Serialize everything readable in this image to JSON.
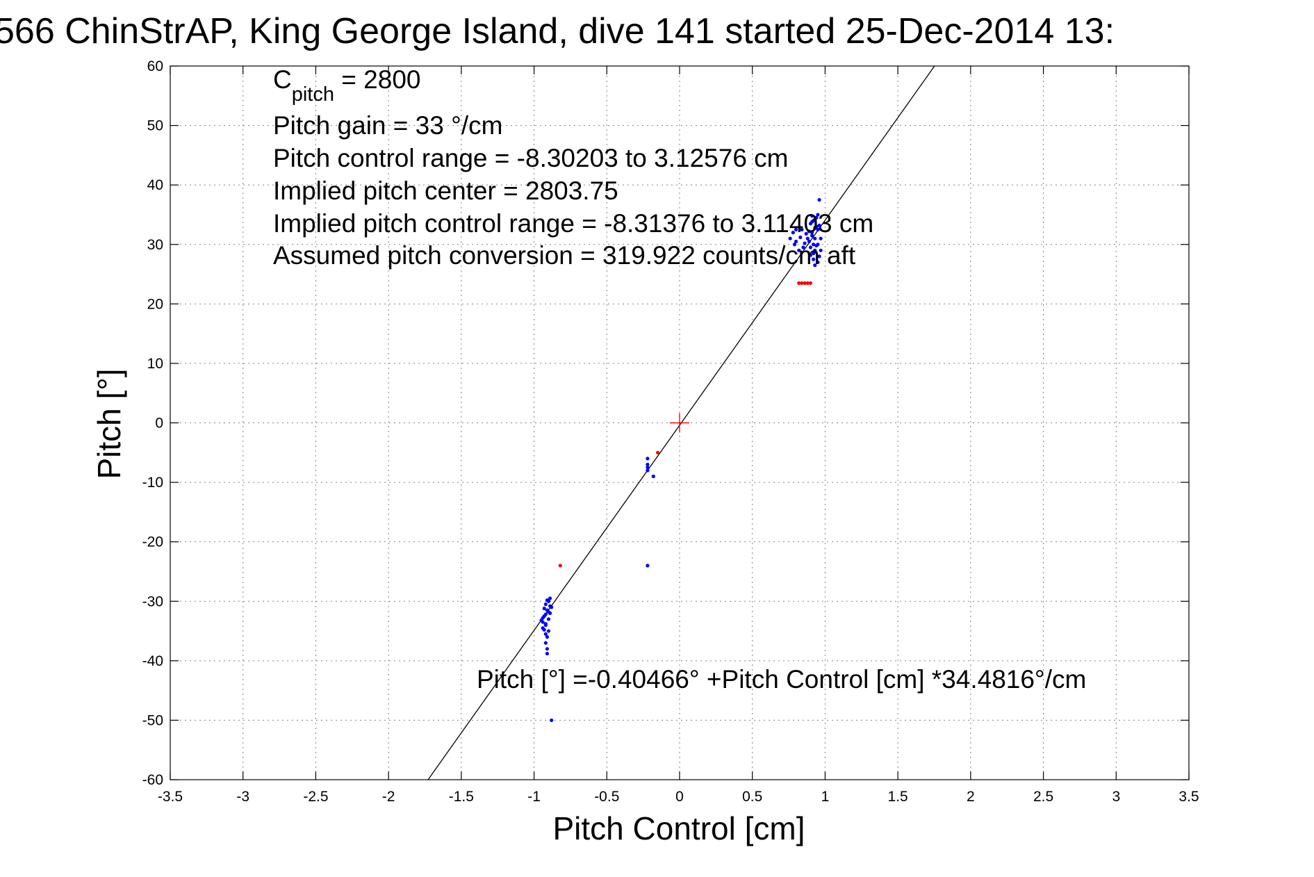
{
  "chart_data": {
    "type": "scatter",
    "title": "566 ChinStrAP, King George Island, dive 141 started 25-Dec-2014 13:",
    "xlabel": "Pitch Control [cm]",
    "ylabel": "Pitch [°]",
    "xlim": [
      -3.5,
      3.5
    ],
    "ylim": [
      -60,
      60
    ],
    "xticks": [
      -3.5,
      -3,
      -2.5,
      -2,
      -1.5,
      -1,
      -0.5,
      0,
      0.5,
      1,
      1.5,
      2,
      2.5,
      3,
      3.5
    ],
    "xtick_labels": [
      "-3.5",
      "-3",
      "-2.5",
      "-2",
      "-1.5",
      "-1",
      "-0.5",
      "0",
      "0.5",
      "1",
      "1.5",
      "2",
      "2.5",
      "3",
      "3.5"
    ],
    "yticks": [
      -60,
      -50,
      -40,
      -30,
      -20,
      -10,
      0,
      10,
      20,
      30,
      40,
      50,
      60
    ],
    "ytick_labels": [
      "-60",
      "-50",
      "-40",
      "-30",
      "-20",
      "-10",
      "0",
      "10",
      "20",
      "30",
      "40",
      "50",
      "60"
    ],
    "grid": true,
    "fit_line": {
      "intercept": -0.40466,
      "slope": 34.4816,
      "color": "#000000"
    },
    "center_marker": {
      "x": 0,
      "y": 0,
      "color": "#ff0000"
    },
    "series": [
      {
        "color": "#0000ff",
        "points": [
          [
            0.92,
            30.0
          ],
          [
            0.93,
            31.0
          ],
          [
            0.91,
            32.0
          ],
          [
            0.94,
            33.0
          ],
          [
            0.92,
            34.0
          ],
          [
            0.9,
            33.5
          ],
          [
            0.95,
            32.5
          ],
          [
            0.93,
            29.0
          ],
          [
            0.96,
            28.0
          ],
          [
            0.89,
            30.5
          ],
          [
            0.91,
            31.5
          ],
          [
            0.94,
            34.5
          ],
          [
            0.9,
            29.5
          ],
          [
            0.92,
            28.5
          ],
          [
            0.88,
            31.0
          ],
          [
            0.95,
            30.0
          ],
          [
            0.97,
            31.0
          ],
          [
            0.93,
            32.8
          ],
          [
            0.91,
            33.8
          ],
          [
            0.89,
            32.2
          ],
          [
            0.96,
            33.2
          ],
          [
            0.94,
            29.8
          ],
          [
            0.9,
            28.2
          ],
          [
            0.92,
            27.5
          ],
          [
            0.86,
            30.2
          ],
          [
            0.87,
            31.8
          ],
          [
            0.84,
            32.5
          ],
          [
            0.85,
            29.5
          ],
          [
            0.83,
            31.2
          ],
          [
            0.8,
            30.5
          ],
          [
            0.78,
            32.0
          ],
          [
            0.79,
            30.0
          ],
          [
            0.82,
            29.0
          ],
          [
            0.76,
            31.0
          ],
          [
            0.93,
            26.5
          ],
          [
            0.95,
            27.0
          ],
          [
            0.97,
            29.0
          ],
          [
            0.91,
            34.8
          ],
          [
            0.93,
            34.2
          ],
          [
            0.96,
            37.5
          ],
          [
            0.8,
            32.5
          ],
          [
            0.95,
            35.0
          ],
          [
            -0.92,
            -30.5
          ],
          [
            -0.91,
            -31.5
          ],
          [
            -0.93,
            -32.5
          ],
          [
            -0.9,
            -33.0
          ],
          [
            -0.92,
            -34.0
          ],
          [
            -0.94,
            -33.5
          ],
          [
            -0.89,
            -32.0
          ],
          [
            -0.88,
            -31.0
          ],
          [
            -0.9,
            -30.0
          ],
          [
            -0.91,
            -29.8
          ],
          [
            -0.93,
            -31.2
          ],
          [
            -0.92,
            -33.8
          ],
          [
            -0.94,
            -34.5
          ],
          [
            -0.9,
            -35.0
          ],
          [
            -0.91,
            -36.0
          ],
          [
            -0.92,
            -32.2
          ],
          [
            -0.89,
            -30.8
          ],
          [
            -0.93,
            -34.8
          ],
          [
            -0.95,
            -33.2
          ],
          [
            -0.9,
            -31.8
          ],
          [
            -0.92,
            -35.5
          ],
          [
            -0.91,
            -38.0
          ],
          [
            -0.91,
            -38.8
          ],
          [
            -0.92,
            -37.0
          ],
          [
            -0.89,
            -29.5
          ],
          [
            -0.94,
            -32.8
          ],
          [
            -0.88,
            -50.0
          ],
          [
            -0.22,
            -6.0
          ],
          [
            -0.22,
            -7.0
          ],
          [
            -0.22,
            -8.0
          ],
          [
            -0.22,
            -7.5
          ],
          [
            -0.18,
            -9.0
          ],
          [
            -0.22,
            -24.0
          ]
        ]
      },
      {
        "color": "#ff0000",
        "points": [
          [
            0.82,
            23.5
          ],
          [
            0.84,
            23.5
          ],
          [
            0.86,
            23.5
          ],
          [
            0.88,
            23.5
          ],
          [
            0.9,
            23.5
          ],
          [
            -0.82,
            -24.0
          ],
          [
            -0.15,
            -5.0
          ]
        ]
      }
    ],
    "annotations": {
      "c_pitch_symbol": "C",
      "c_pitch_subscript": "pitch",
      "c_pitch_value": " = 2800",
      "lines": [
        "Pitch gain = 33 °/cm",
        "Pitch control range = -8.30203 to 3.12576 cm",
        "Implied pitch center = 2803.75",
        "Implied pitch control range = -8.31376 to 3.11403 cm",
        "Assumed pitch conversion = 319.922 counts/cm aft"
      ],
      "fit_label": "Pitch [°] =-0.40466° +Pitch Control [cm] *34.4816°/cm"
    }
  }
}
